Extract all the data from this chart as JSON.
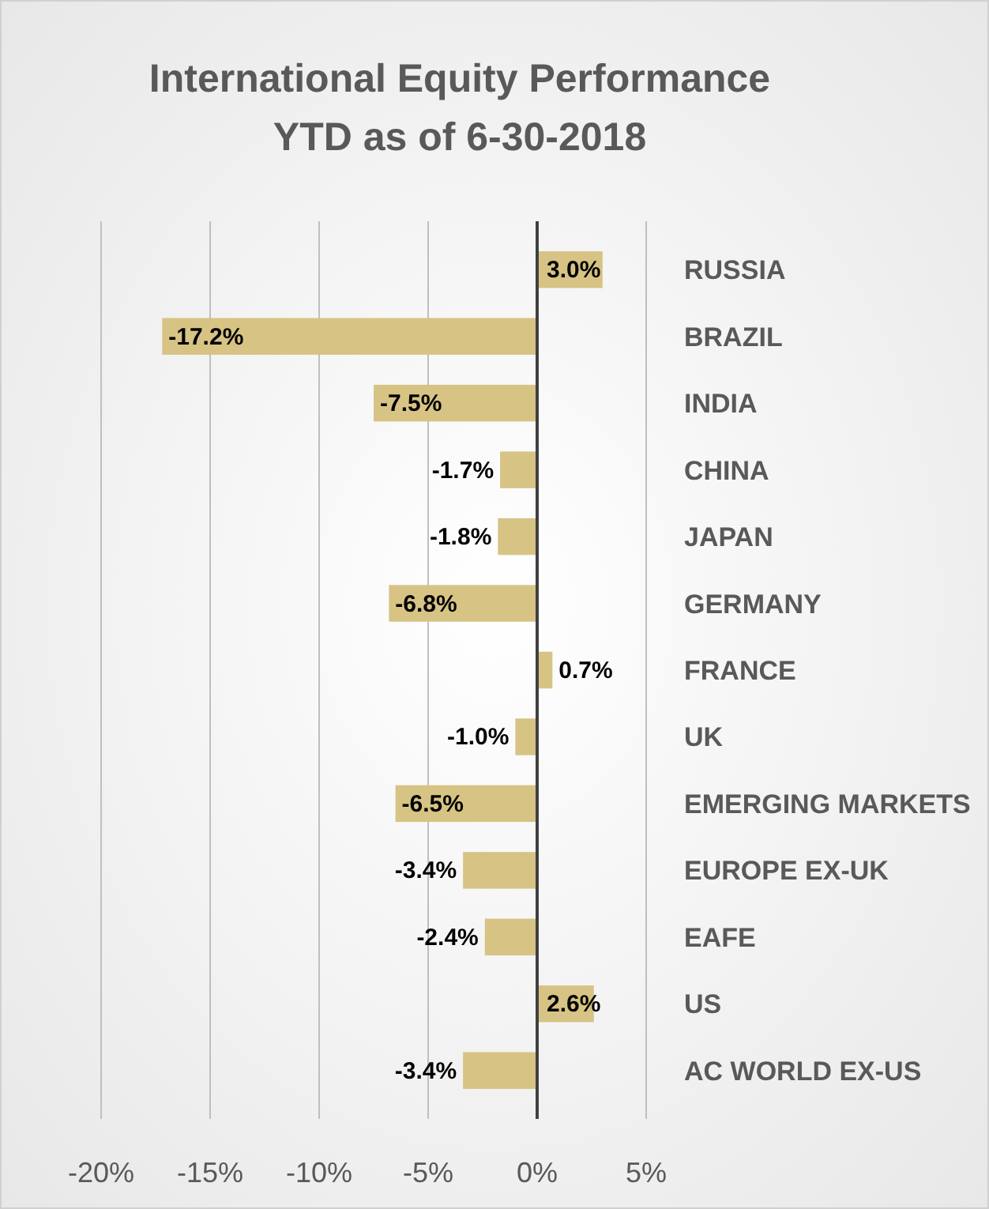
{
  "chart_data": {
    "type": "bar",
    "orientation": "horizontal",
    "title": "International Equity Performance\nYTD as of 6-30-2018",
    "categories": [
      "RUSSIA",
      "BRAZIL",
      "INDIA",
      "CHINA",
      "JAPAN",
      "GERMANY",
      "FRANCE",
      "UK",
      "EMERGING MARKETS",
      "EUROPE EX-UK",
      "EAFE",
      "US",
      "AC WORLD EX-US"
    ],
    "values": [
      3.0,
      -17.2,
      -7.5,
      -1.7,
      -1.8,
      -6.8,
      0.7,
      -1.0,
      -6.5,
      -3.4,
      -2.4,
      2.6,
      -3.4
    ],
    "value_labels": [
      "3.0%",
      "-17.2%",
      "-7.5%",
      "-1.7%",
      "-1.8%",
      "-6.8%",
      "0.7%",
      "-1.0%",
      "-6.5%",
      "-3.4%",
      "-2.4%",
      "2.6%",
      "-3.4%"
    ],
    "color": "#d7c384",
    "xlim": [
      -20,
      5
    ],
    "xticks": [
      {
        "value": -20,
        "label": "-20%"
      },
      {
        "value": -15,
        "label": "-15%"
      },
      {
        "value": -10,
        "label": "-10%"
      },
      {
        "value": -5,
        "label": "-5%"
      },
      {
        "value": 0,
        "label": "0%"
      },
      {
        "value": 5,
        "label": "5%"
      }
    ],
    "grid": "x"
  }
}
